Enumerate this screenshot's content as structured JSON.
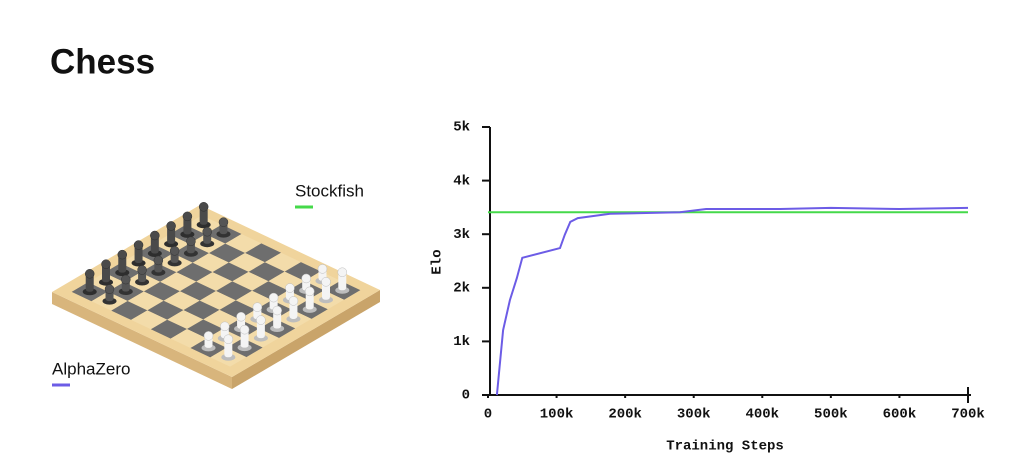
{
  "title": "Chess",
  "chart_data": {
    "type": "line",
    "x_label": "Training Steps",
    "y_label": "Elo",
    "xlim": [
      0,
      700000
    ],
    "ylim": [
      0,
      5000
    ],
    "xticks": [
      0,
      {
        "value": 100000,
        "label": "100k"
      },
      {
        "value": 200000,
        "label": "200k"
      },
      {
        "value": 300000,
        "label": "300k"
      },
      {
        "value": 400000,
        "label": "400k"
      },
      {
        "value": 500000,
        "label": "500k"
      },
      {
        "value": 600000,
        "label": "600k"
      },
      {
        "value": 700000,
        "label": "700k"
      }
    ],
    "yticks": [
      0,
      {
        "value": 1000,
        "label": "1k"
      },
      {
        "value": 2000,
        "label": "2k"
      },
      {
        "value": 3000,
        "label": "3k"
      },
      {
        "value": 4000,
        "label": "4k"
      },
      {
        "value": 5000,
        "label": "5k"
      }
    ],
    "series": [
      {
        "name": "Stockfish",
        "color": "#45d94a",
        "x": [
          0,
          700000
        ],
        "values": [
          3410,
          3410
        ]
      },
      {
        "name": "AlphaZero",
        "color": "#6c5ce6",
        "x": [
          13000,
          22000,
          32000,
          42000,
          50000,
          105000,
          112000,
          120000,
          131000,
          178000,
          280000,
          318000,
          426000,
          500000,
          600000,
          700000
        ],
        "values": [
          0,
          1210,
          1770,
          2180,
          2560,
          2740,
          2990,
          3230,
          3300,
          3380,
          3410,
          3470,
          3470,
          3490,
          3470,
          3490
        ]
      }
    ]
  }
}
